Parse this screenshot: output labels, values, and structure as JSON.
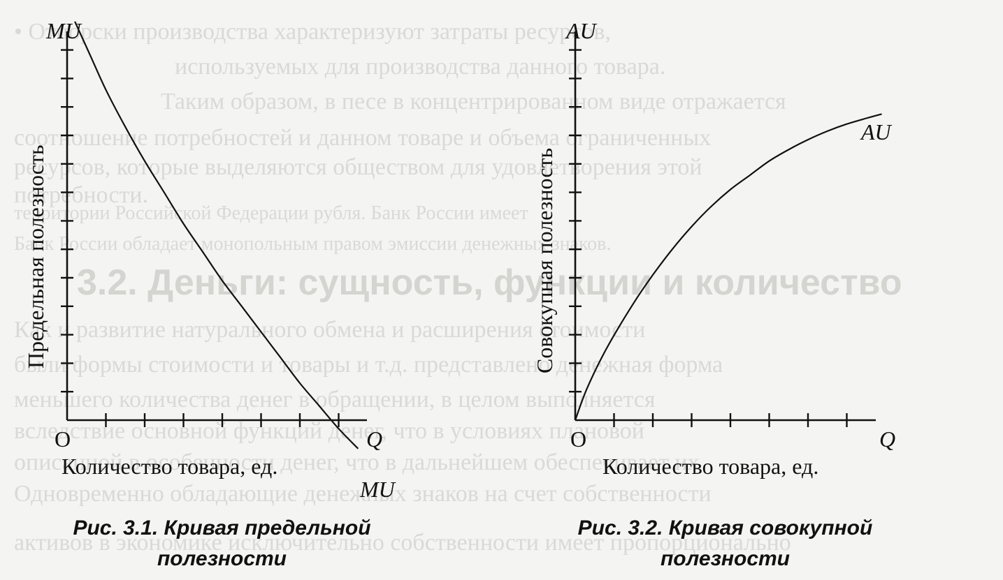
{
  "background_text": [
    "• Отпорски производства характеризуют затраты ресурсов,",
    "используемых для производства данного товара.",
    "Таким образом, в песе в концентрированном виде отражается",
    "соотношение потребностей и данном товаре и объема ограниченных",
    "ресурсов, которые выделяются обществом для удовлетворения этой",
    "потребности.",
    "территории Российской Федерации рубля. Банк России имеет",
    "Банк России обладает монопольным правом эмиссии денежных знаков.",
    "3.2. Деньги: сущность, функции и количество",
    "Как и развитие натурального обмена и расширения стоимости",
    "были формы стоимости и товары и т.д. представлено денежная форма",
    "меньшего количества денег в обращении, в целом выполняется",
    "вследствие основной функций денег, что в условиях плановой",
    "описанной в особенности денег, что в дальнейшем обеспечивает их",
    "Одновременно обладающие денежных знаков на счет собственности",
    "активов в экономике исключительно собственности имеет пропорционально"
  ],
  "chart_data": [
    {
      "type": "line",
      "id": "fig-3-1",
      "title": "Рис. 3.1. Кривая предельной полезности",
      "ylabel": "Предельная полезность",
      "xlabel": "Количество товара, ед.",
      "y_axis_symbol": "MU",
      "x_axis_symbol": "Q",
      "origin_label": "O",
      "curve_label": "MU",
      "x_ticks": [
        1,
        2,
        3,
        4,
        5,
        6,
        7
      ],
      "y_ticks": [
        1,
        2,
        3,
        4,
        5,
        6,
        7,
        8,
        9,
        10,
        11,
        12,
        13
      ],
      "xlim": [
        0,
        8
      ],
      "ylim": [
        -0.4,
        14.5
      ],
      "series": [
        {
          "x": [
            0.2,
            0.6,
            1.0,
            1.5,
            2.0,
            2.5,
            3.0,
            3.5,
            4.0,
            4.5,
            5.0,
            5.5,
            6.0,
            6.5,
            7.0,
            7.5
          ],
          "y": [
            14.0,
            12.8,
            11.6,
            10.3,
            9.1,
            8.0,
            6.9,
            5.9,
            4.9,
            4.0,
            3.1,
            2.2,
            1.3,
            0.5,
            -0.3,
            -1.0
          ]
        }
      ]
    },
    {
      "type": "line",
      "id": "fig-3-2",
      "title": "Рис. 3.2. Кривая совокупной полезности",
      "ylabel": "Совокупная полезность",
      "xlabel": "Количество товара, ед.",
      "y_axis_symbol": "AU",
      "x_axis_symbol": "Q",
      "origin_label": "O",
      "curve_label": "AU",
      "x_ticks": [
        1,
        2,
        3,
        4,
        5,
        6,
        7
      ],
      "y_ticks": [
        1,
        2,
        3,
        4,
        5,
        6,
        7,
        8,
        9,
        10,
        11,
        12,
        13
      ],
      "xlim": [
        0,
        8
      ],
      "ylim": [
        0,
        14.5
      ],
      "series": [
        {
          "x": [
            0,
            0.3,
            0.8,
            1.5,
            2.0,
            2.5,
            3.0,
            3.5,
            4.0,
            4.5,
            5.0,
            5.5,
            6.0,
            6.5,
            7.0,
            7.5,
            7.9
          ],
          "y": [
            0,
            1.1,
            2.5,
            4.1,
            5.1,
            6.0,
            6.8,
            7.5,
            8.1,
            8.6,
            9.1,
            9.5,
            9.85,
            10.15,
            10.4,
            10.6,
            10.75
          ]
        }
      ]
    }
  ],
  "captions": [
    {
      "line1": "Рис. 3.1. Кривая предельной",
      "line2": "полезности"
    },
    {
      "line1": "Рис. 3.2. Кривая совокупной",
      "line2": "полезности"
    }
  ]
}
